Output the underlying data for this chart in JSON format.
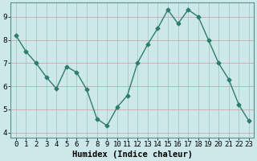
{
  "x": [
    0,
    1,
    2,
    3,
    4,
    5,
    6,
    7,
    8,
    9,
    10,
    11,
    12,
    13,
    14,
    15,
    16,
    17,
    18,
    19,
    20,
    21,
    22,
    23
  ],
  "y": [
    8.2,
    7.5,
    7.0,
    6.4,
    5.9,
    6.85,
    6.6,
    5.85,
    4.6,
    4.3,
    5.1,
    5.6,
    7.0,
    7.8,
    8.5,
    9.3,
    8.7,
    9.3,
    9.0,
    8.0,
    7.0,
    6.3,
    5.2,
    4.5
  ],
  "line_color": "#2e7d6e",
  "marker": "D",
  "marker_size": 2.5,
  "bg_color": "#cce8e8",
  "grid_color_h": "#c8a8a8",
  "grid_color_v": "#a8c8c8",
  "xlabel": "Humidex (Indice chaleur)",
  "xlim": [
    -0.5,
    23.5
  ],
  "ylim": [
    3.8,
    9.6
  ],
  "yticks": [
    4,
    5,
    6,
    7,
    8,
    9
  ],
  "xtick_labels": [
    "0",
    "1",
    "2",
    "3",
    "4",
    "5",
    "6",
    "7",
    "8",
    "9",
    "10",
    "11",
    "12",
    "13",
    "14",
    "15",
    "16",
    "17",
    "18",
    "19",
    "20",
    "21",
    "22",
    "23"
  ],
  "xlabel_fontsize": 7.5,
  "tick_fontsize": 6.5
}
